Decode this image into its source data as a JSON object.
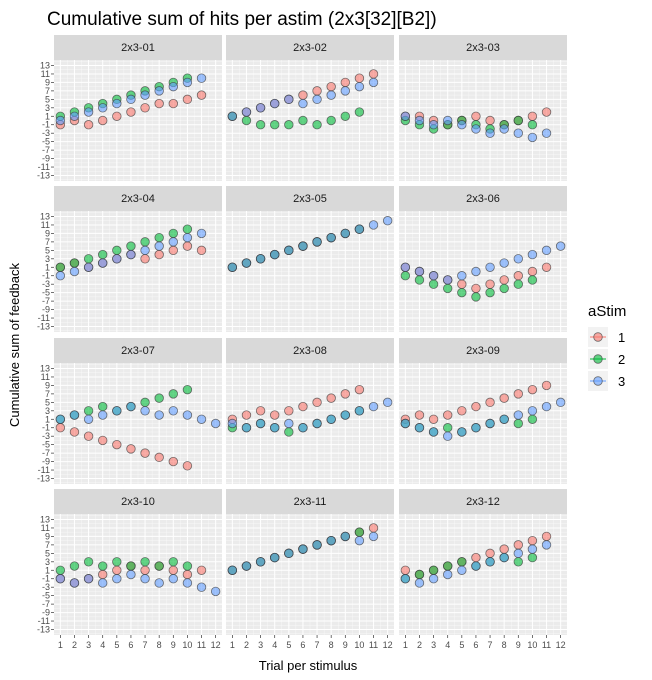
{
  "chart_data": {
    "type": "scatter",
    "title": "Cumulative sum of hits per astim (2x3[32][B2])",
    "xlabel": "Trial per stimulus",
    "ylabel": "Cumulative sum of feedback",
    "x_ticks": [
      "1",
      "2",
      "3",
      "4",
      "5",
      "6",
      "7",
      "8",
      "9",
      "10",
      "11",
      "12"
    ],
    "y_ticks": [
      "-13",
      "-11",
      "-9",
      "-7",
      "-5",
      "-3",
      "-1",
      "1",
      "3",
      "5",
      "7",
      "9",
      "11",
      "13"
    ],
    "y_tick_values": [
      -13,
      -11,
      -9,
      -7,
      -5,
      -3,
      -1,
      1,
      3,
      5,
      7,
      9,
      11,
      13
    ],
    "ylim": [
      -13,
      13
    ],
    "xlim": [
      1,
      12
    ],
    "grid": true,
    "legend": {
      "title": "aStim",
      "position": "right",
      "entries": [
        "1",
        "2",
        "3"
      ],
      "colors": [
        "#F8766D",
        "#00BA38",
        "#619CFF"
      ]
    },
    "panels": [
      {
        "name": "2x3-01",
        "series": [
          {
            "name": "1",
            "x": [
              1,
              2,
              3,
              4,
              5,
              6,
              7,
              8,
              9,
              10,
              11
            ],
            "y": [
              -1,
              0,
              -1,
              0,
              1,
              2,
              3,
              4,
              4,
              5,
              6
            ]
          },
          {
            "name": "2",
            "x": [
              1,
              2,
              3,
              4,
              5,
              6,
              7,
              8,
              9,
              10
            ],
            "y": [
              1,
              2,
              3,
              4,
              5,
              6,
              7,
              8,
              9,
              10
            ]
          },
          {
            "name": "3",
            "x": [
              1,
              2,
              3,
              4,
              5,
              6,
              7,
              8,
              9,
              10,
              11
            ],
            "y": [
              0,
              1,
              2,
              3,
              4,
              5,
              6,
              7,
              8,
              9,
              10
            ]
          }
        ]
      },
      {
        "name": "2x3-02",
        "series": [
          {
            "name": "1",
            "x": [
              1,
              2,
              3,
              4,
              5,
              6,
              7,
              8,
              9,
              10,
              11
            ],
            "y": [
              1,
              2,
              3,
              4,
              5,
              6,
              7,
              8,
              9,
              10,
              11
            ]
          },
          {
            "name": "2",
            "x": [
              1,
              2,
              3,
              4,
              5,
              6,
              7,
              8,
              9,
              10
            ],
            "y": [
              1,
              0,
              -1,
              -1,
              -1,
              0,
              -1,
              0,
              1,
              2
            ]
          },
          {
            "name": "3",
            "x": [
              1,
              2,
              3,
              4,
              5,
              6,
              7,
              8,
              9,
              10,
              11
            ],
            "y": [
              1,
              2,
              3,
              4,
              5,
              4,
              5,
              6,
              7,
              8,
              9
            ]
          }
        ]
      },
      {
        "name": "2x3-03",
        "series": [
          {
            "name": "1",
            "x": [
              1,
              2,
              3,
              4,
              5,
              6,
              7,
              8,
              9,
              10,
              11
            ],
            "y": [
              1,
              1,
              0,
              -1,
              0,
              1,
              0,
              -1,
              0,
              1,
              2
            ]
          },
          {
            "name": "2",
            "x": [
              1,
              2,
              3,
              4,
              5,
              6,
              7,
              8,
              9,
              10
            ],
            "y": [
              0,
              -1,
              -2,
              -1,
              0,
              -1,
              -2,
              -1,
              0,
              -1
            ]
          },
          {
            "name": "3",
            "x": [
              1,
              2,
              3,
              4,
              5,
              6,
              7,
              8,
              9,
              10,
              11
            ],
            "y": [
              1,
              0,
              -1,
              0,
              -1,
              -2,
              -3,
              -2,
              -3,
              -4,
              -3
            ]
          }
        ]
      },
      {
        "name": "2x3-04",
        "series": [
          {
            "name": "1",
            "x": [
              1,
              2,
              3,
              4,
              5,
              6,
              7,
              8,
              9,
              10,
              11
            ],
            "y": [
              1,
              2,
              1,
              2,
              3,
              4,
              3,
              4,
              5,
              6,
              5
            ]
          },
          {
            "name": "2",
            "x": [
              1,
              2,
              3,
              4,
              5,
              6,
              7,
              8,
              9,
              10
            ],
            "y": [
              1,
              2,
              3,
              4,
              5,
              6,
              7,
              8,
              9,
              10
            ]
          },
          {
            "name": "3",
            "x": [
              1,
              2,
              3,
              4,
              5,
              6,
              7,
              8,
              9,
              10,
              11
            ],
            "y": [
              -1,
              0,
              1,
              2,
              3,
              4,
              5,
              6,
              7,
              8,
              9
            ]
          }
        ]
      },
      {
        "name": "2x3-05",
        "series": [
          {
            "name": "1",
            "x": [
              1,
              2,
              3,
              4,
              5,
              6,
              7,
              8,
              9,
              10
            ],
            "y": [
              1,
              2,
              3,
              4,
              5,
              6,
              7,
              8,
              9,
              10
            ]
          },
          {
            "name": "2",
            "x": [
              1,
              2,
              3,
              4,
              5,
              6,
              7,
              8,
              9,
              10
            ],
            "y": [
              1,
              2,
              3,
              4,
              5,
              6,
              7,
              8,
              9,
              10
            ]
          },
          {
            "name": "3",
            "x": [
              1,
              2,
              3,
              4,
              5,
              6,
              7,
              8,
              9,
              10,
              11,
              12
            ],
            "y": [
              1,
              2,
              3,
              4,
              5,
              6,
              7,
              8,
              9,
              10,
              11,
              12
            ]
          }
        ]
      },
      {
        "name": "2x3-06",
        "series": [
          {
            "name": "1",
            "x": [
              1,
              2,
              3,
              4,
              5,
              6,
              7,
              8,
              9,
              10,
              11
            ],
            "y": [
              1,
              0,
              -1,
              -2,
              -3,
              -4,
              -3,
              -2,
              -1,
              0,
              1
            ]
          },
          {
            "name": "2",
            "x": [
              1,
              2,
              3,
              4,
              5,
              6,
              7,
              8,
              9,
              10
            ],
            "y": [
              -1,
              -2,
              -3,
              -4,
              -5,
              -6,
              -5,
              -4,
              -3,
              -2
            ]
          },
          {
            "name": "3",
            "x": [
              1,
              2,
              3,
              4,
              5,
              6,
              7,
              8,
              9,
              10,
              11,
              12
            ],
            "y": [
              1,
              0,
              -1,
              -2,
              -1,
              0,
              1,
              2,
              3,
              4,
              5,
              6
            ]
          }
        ]
      },
      {
        "name": "2x3-07",
        "series": [
          {
            "name": "1",
            "x": [
              1,
              2,
              3,
              4,
              5,
              6,
              7,
              8,
              9,
              10
            ],
            "y": [
              -1,
              -2,
              -3,
              -4,
              -5,
              -6,
              -7,
              -8,
              -9,
              -10
            ]
          },
          {
            "name": "2",
            "x": [
              1,
              2,
              3,
              4,
              5,
              6,
              7,
              8,
              9,
              10
            ],
            "y": [
              1,
              2,
              3,
              4,
              3,
              4,
              5,
              6,
              7,
              8
            ]
          },
          {
            "name": "3",
            "x": [
              1,
              2,
              3,
              4,
              5,
              6,
              7,
              8,
              9,
              10,
              11,
              12
            ],
            "y": [
              1,
              2,
              1,
              2,
              3,
              4,
              3,
              2,
              3,
              2,
              1,
              0
            ]
          }
        ]
      },
      {
        "name": "2x3-08",
        "series": [
          {
            "name": "1",
            "x": [
              1,
              2,
              3,
              4,
              5,
              6,
              7,
              8,
              9,
              10
            ],
            "y": [
              1,
              2,
              3,
              2,
              3,
              4,
              5,
              6,
              7,
              8
            ]
          },
          {
            "name": "2",
            "x": [
              1,
              2,
              3,
              4,
              5,
              6,
              7,
              8,
              9,
              10
            ],
            "y": [
              -1,
              -1,
              0,
              -1,
              -2,
              -1,
              0,
              1,
              2,
              3
            ]
          },
          {
            "name": "3",
            "x": [
              1,
              2,
              3,
              4,
              5,
              6,
              7,
              8,
              9,
              10,
              11,
              12
            ],
            "y": [
              0,
              -1,
              0,
              -1,
              0,
              -1,
              0,
              1,
              2,
              3,
              4,
              5
            ]
          }
        ]
      },
      {
        "name": "2x3-09",
        "series": [
          {
            "name": "1",
            "x": [
              1,
              2,
              3,
              4,
              5,
              6,
              7,
              8,
              9,
              10,
              11
            ],
            "y": [
              1,
              2,
              1,
              2,
              3,
              4,
              5,
              6,
              7,
              8,
              9
            ]
          },
          {
            "name": "2",
            "x": [
              1,
              2,
              3,
              4,
              5,
              6,
              7,
              8,
              9,
              10
            ],
            "y": [
              0,
              -1,
              -2,
              -1,
              -2,
              -1,
              0,
              1,
              0,
              1
            ]
          },
          {
            "name": "3",
            "x": [
              1,
              2,
              3,
              4,
              5,
              6,
              7,
              8,
              9,
              10,
              11,
              12
            ],
            "y": [
              0,
              -1,
              -2,
              -3,
              -2,
              -1,
              0,
              1,
              2,
              3,
              4,
              5
            ]
          }
        ]
      },
      {
        "name": "2x3-10",
        "series": [
          {
            "name": "1",
            "x": [
              1,
              2,
              3,
              4,
              5,
              6,
              7,
              8,
              9,
              10,
              11
            ],
            "y": [
              -1,
              -2,
              -1,
              0,
              1,
              2,
              1,
              2,
              1,
              0,
              1
            ]
          },
          {
            "name": "2",
            "x": [
              1,
              2,
              3,
              4,
              5,
              6,
              7,
              8,
              9,
              10
            ],
            "y": [
              1,
              2,
              3,
              2,
              3,
              2,
              3,
              2,
              3,
              2
            ]
          },
          {
            "name": "3",
            "x": [
              1,
              2,
              3,
              4,
              5,
              6,
              7,
              8,
              9,
              10,
              11,
              12
            ],
            "y": [
              -1,
              -2,
              -1,
              -2,
              -1,
              0,
              -1,
              -2,
              -1,
              -2,
              -3,
              -4
            ]
          }
        ]
      },
      {
        "name": "2x3-11",
        "series": [
          {
            "name": "1",
            "x": [
              1,
              2,
              3,
              4,
              5,
              6,
              7,
              8,
              9,
              10,
              11
            ],
            "y": [
              1,
              2,
              3,
              4,
              5,
              6,
              7,
              8,
              9,
              10,
              11
            ]
          },
          {
            "name": "2",
            "x": [
              1,
              2,
              3,
              4,
              5,
              6,
              7,
              8,
              9,
              10
            ],
            "y": [
              1,
              2,
              3,
              4,
              5,
              6,
              7,
              8,
              9,
              10
            ]
          },
          {
            "name": "3",
            "x": [
              1,
              2,
              3,
              4,
              5,
              6,
              7,
              8,
              9,
              10,
              11
            ],
            "y": [
              1,
              2,
              3,
              4,
              5,
              6,
              7,
              8,
              9,
              8,
              9
            ]
          }
        ]
      },
      {
        "name": "2x3-12",
        "series": [
          {
            "name": "1",
            "x": [
              1,
              2,
              3,
              4,
              5,
              6,
              7,
              8,
              9,
              10,
              11
            ],
            "y": [
              1,
              0,
              1,
              2,
              3,
              4,
              5,
              6,
              7,
              8,
              9
            ]
          },
          {
            "name": "2",
            "x": [
              1,
              2,
              3,
              4,
              5,
              6,
              7,
              8,
              9,
              10
            ],
            "y": [
              -1,
              0,
              1,
              2,
              3,
              2,
              3,
              4,
              3,
              4
            ]
          },
          {
            "name": "3",
            "x": [
              1,
              2,
              3,
              4,
              5,
              6,
              7,
              8,
              9,
              10,
              11
            ],
            "y": [
              -1,
              -2,
              -1,
              0,
              1,
              2,
              3,
              4,
              5,
              6,
              7
            ]
          }
        ]
      }
    ]
  }
}
